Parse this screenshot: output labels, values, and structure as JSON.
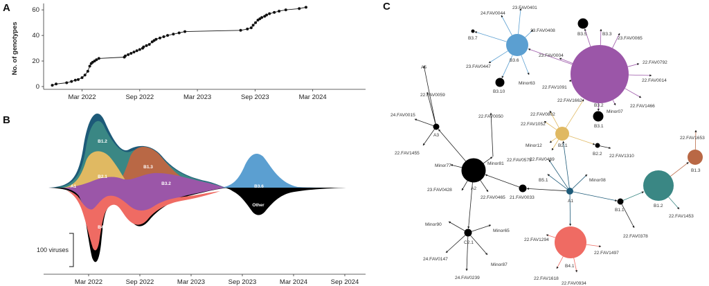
{
  "panels": {
    "a": "A",
    "b": "B",
    "c": "C"
  },
  "chart_data": [
    {
      "type": "line",
      "ylabel": "No. of genotypes",
      "xlabel": "",
      "ylim": [
        0,
        65
      ],
      "yticks": [
        0,
        20,
        40,
        60
      ],
      "xticks": [
        "Mar 2022",
        "Sep 2022",
        "Mar 2023",
        "Sep 2023",
        "Mar 2024",
        "Sep 2024"
      ],
      "xlim_months": [
        -2.5,
        31
      ],
      "points": [
        [
          -1.6,
          1
        ],
        [
          -1.2,
          2
        ],
        [
          -0.1,
          3
        ],
        [
          0.4,
          4
        ],
        [
          0.8,
          5
        ],
        [
          1.1,
          5.5
        ],
        [
          1.5,
          7
        ],
        [
          1.8,
          9
        ],
        [
          2.1,
          12
        ],
        [
          2.3,
          16
        ],
        [
          2.45,
          18
        ],
        [
          2.6,
          19
        ],
        [
          2.8,
          20
        ],
        [
          3.0,
          21
        ],
        [
          3.25,
          22
        ],
        [
          5.9,
          23
        ],
        [
          6.0,
          24
        ],
        [
          6.3,
          25
        ],
        [
          6.6,
          26
        ],
        [
          6.9,
          27
        ],
        [
          7.2,
          28
        ],
        [
          7.5,
          29
        ],
        [
          7.8,
          30
        ],
        [
          7.9,
          31
        ],
        [
          8.2,
          32
        ],
        [
          8.5,
          33
        ],
        [
          8.8,
          35
        ],
        [
          9.0,
          36
        ],
        [
          9.2,
          37
        ],
        [
          9.6,
          38
        ],
        [
          10.0,
          39
        ],
        [
          10.4,
          40
        ],
        [
          11.0,
          41
        ],
        [
          11.6,
          42
        ],
        [
          12.2,
          43
        ],
        [
          18.0,
          44
        ],
        [
          18.7,
          45
        ],
        [
          19.1,
          46
        ],
        [
          19.3,
          48
        ],
        [
          19.55,
          50
        ],
        [
          19.8,
          52
        ],
        [
          20.0,
          53
        ],
        [
          20.2,
          54
        ],
        [
          20.5,
          55
        ],
        [
          20.7,
          56
        ],
        [
          21.0,
          57
        ],
        [
          21.5,
          58
        ],
        [
          22.0,
          59
        ],
        [
          22.7,
          60
        ],
        [
          24.1,
          61
        ],
        [
          24.8,
          62
        ]
      ]
    },
    {
      "type": "area",
      "xticks": [
        "Mar 2022",
        "Sep 2022",
        "Mar 2023",
        "Sep 2023",
        "Mar 2024",
        "Sep 2024"
      ],
      "scale_bar": {
        "label": "100 viruses",
        "value": 100
      },
      "series": [
        {
          "name": "B1.2",
          "label": "B1.2",
          "color": "#3a8784"
        },
        {
          "name": "B2.1",
          "label": "B2.1",
          "color": "#e0b962"
        },
        {
          "name": "B1.3",
          "label": "B1.3",
          "color": "#b96845"
        },
        {
          "name": "B3.2",
          "label": "B3.2",
          "color": "#9b56a8"
        },
        {
          "name": "B3.6",
          "label": "B3.6",
          "color": "#5b9fd1"
        },
        {
          "name": "A1",
          "label": "A1",
          "color": "#1d5a78"
        },
        {
          "name": "B4.1",
          "label": "B4.1",
          "color": "#ef6b63"
        },
        {
          "name": "Other",
          "label": "Other",
          "color": "#000000"
        }
      ]
    },
    {
      "type": "network",
      "nodes": [
        {
          "id": "A1",
          "label": "A1",
          "color": "#1d5a78",
          "size": 5
        },
        {
          "id": "A2",
          "label": "A2",
          "color": "#000000",
          "size": 17
        },
        {
          "id": "A3",
          "label": "A3",
          "color": "#000000",
          "size": 4
        },
        {
          "id": "C2.1",
          "label": "C2.1",
          "color": "#000000",
          "size": 5
        },
        {
          "id": "B1.1",
          "label": "B1.1",
          "color": "#000000",
          "size": 4
        },
        {
          "id": "B1.2",
          "label": "B1.2",
          "color": "#3a8784",
          "size": 22
        },
        {
          "id": "B1.3",
          "label": "B1.3",
          "color": "#b96845",
          "size": 11
        },
        {
          "id": "B2.1",
          "label": "B2.1",
          "color": "#e0b962",
          "size": 10
        },
        {
          "id": "B2.2",
          "label": "B2.2",
          "color": "#000000",
          "size": 3
        },
        {
          "id": "B3.1",
          "label": "B3.1",
          "color": "#000000",
          "size": 7
        },
        {
          "id": "B3.2",
          "label": "B3.2",
          "color": "#9b56a8",
          "size": 42
        },
        {
          "id": "B3.5",
          "label": "B3.5",
          "color": "#000000",
          "size": 7
        },
        {
          "id": "B3.6",
          "label": "B3.6",
          "color": "#5b9fd1",
          "size": 16
        },
        {
          "id": "B3.7",
          "label": "B3.7",
          "color": "#000000",
          "size": 2
        },
        {
          "id": "B3.10",
          "label": "B3.10",
          "color": "#000000",
          "size": 6
        },
        {
          "id": "B4.1",
          "label": "B4.1",
          "color": "#ef6b63",
          "size": 23
        },
        {
          "id": "B5.1",
          "label": "B5.1",
          "color": "#000000",
          "size": 0
        },
        {
          "id": "A5",
          "label": "A5",
          "color": "#000000",
          "size": 0
        },
        {
          "id": "Minor81",
          "label": "Minor81",
          "color": "#000000",
          "size": 0
        },
        {
          "id": "21.FAV0033",
          "label": "21.FAV0033",
          "color": "#000000",
          "size": 5
        }
      ],
      "leaf_labels": [
        "24.FAV0044",
        "23.FAV0401",
        "23.FAV0408",
        "Minor63",
        "23.FAV0447",
        "23.FAV0004",
        "B3.3",
        "23.FAV0065",
        "22.FAV0792",
        "22.FAV0014",
        "22.FAV1091",
        "22.FAV1662",
        "22.FAV1466",
        "Minor07",
        "22.FAV0059",
        "24.FAV0015",
        "22.FAV1455",
        "22.FAV0050",
        "22.FAV0802",
        "22.FAV1052",
        "Minor12",
        "22.FAV0469",
        "22.FAV1310",
        "22.FAV0575",
        "Minor08",
        "22.FAV1653",
        "22.FAV1453",
        "22.FAV0378",
        "Minor77",
        "23.FAV0428",
        "22.FAV0465",
        "Minor90",
        "Minor65",
        "24.FAV0147",
        "Minor87",
        "24.FAV0239",
        "22.FAV1294",
        "22.FAV1497",
        "22.FAV1618",
        "22.FAV0934"
      ]
    }
  ]
}
